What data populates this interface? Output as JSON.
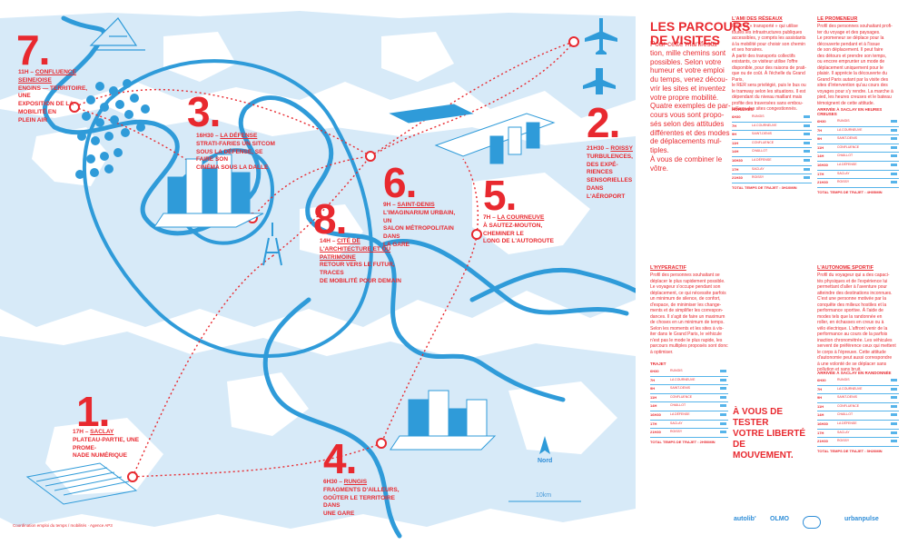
{
  "map": {
    "stops": [
      {
        "num": "7.",
        "time": "11H",
        "place": "Confluence Seine/Oise",
        "text": [
          "Engins — Territoire, une",
          "exposition de la mobilité en",
          "plein air"
        ]
      },
      {
        "num": "3.",
        "time": "16H30",
        "place": "La Défense",
        "text": [
          "Strati-Faries un sitcom",
          "sous la Défense, se faire son",
          "cinéma sous la dalle"
        ]
      },
      {
        "num": "2.",
        "time": "21H30",
        "place": "Roissy",
        "text": [
          "Turbulences, des expé-",
          "riences sensorielles dans",
          "l'aéroport"
        ]
      },
      {
        "num": "6.",
        "time": "9H",
        "place": "Saint-Denis",
        "text": [
          "L'imaginarium urbain, un",
          "salon métropolitain dans",
          "la gare"
        ]
      },
      {
        "num": "5.",
        "time": "7H",
        "place": "La Courneuve",
        "text": [
          "À Sautez-Mouton, cheminer le",
          "long de l'autoroute"
        ]
      },
      {
        "num": "8.",
        "time": "14H",
        "place": "Cité de l'architecture et du patrimoine",
        "text": [
          "Retour vers le futur, traces",
          "de mobilité pour demain"
        ]
      },
      {
        "num": "1.",
        "time": "17H",
        "place": "Saclay",
        "text": [
          "Plateau-Partie, une prome-",
          "nade numérique"
        ]
      },
      {
        "num": "4.",
        "time": "6H30",
        "place": "Rungis",
        "text": [
          "Fragments d'ailleurs,",
          "goûter le territoire dans",
          "une gare"
        ]
      }
    ],
    "scale_label": "10km",
    "north_label": "Nord",
    "credits": "Coordination emploi du temps / mobilités · Agence AP3",
    "colors": {
      "water": "#2f9bd9",
      "zone": "#d7eaf8",
      "accent": "#e8292f"
    }
  },
  "panel": {
    "title_lines": [
      "Les parcours",
      "de visites"
    ],
    "intro": [
      "Pour cette manifesta-",
      "tion, mille chemins sont",
      "possibles. Selon votre",
      "humeur et votre emploi",
      "du temps, venez décou-",
      "vrir les sites et inventez",
      "votre propre mobilité.",
      "Quatre exemples de par-",
      "cours vous sont propo-",
      "sés selon des attitudes",
      "différentes et des modes",
      "de déplacements mul-",
      "tiples.",
      "À vous de combiner le",
      "vôtre."
    ],
    "columns": [
      {
        "head": "L'AMI DES RÉSEAUX",
        "text": [
          "Profil de « transporté » qui utilise",
          "toutes les infrastructures publiques",
          "accessibles, y compris les assistants",
          "à la mobilité pour choisir son chemin",
          "et ses horaires.",
          "À partir des transports collectifs",
          "existants, ce visiteur utilise l'offre",
          "disponible, pour des raisons de prati-",
          "que ou de coût. À l'échelle du Grand Paris,",
          "le RER sera privilégié, puis le bus ou",
          "le tramway selon les situations. Il est",
          "dépendant du niveau maillant mais",
          "profite des traversées sans embou-",
          "teillage des sites congestionnés."
        ]
      },
      {
        "head": "LE PROMENEUR",
        "text": [
          "Profil des personnes souhaitant profi-",
          "ter du voyage et des paysages.",
          "Le promeneur se déplace pour la",
          "découverte pendant et à l'issue",
          "de son déplacement. Il peut faire",
          "des détours et prendre son temps,",
          "ou encore emprunter un mode de",
          "déplacement uniquement pour le",
          "plaisir. Il apprécie la découverte du",
          "Grand Paris autant par la visite des",
          "sites d'intervention qu'au cours des",
          "voyages pour s'y rendre. La marche à",
          "pied, les heures creuses et le bateau",
          "témoignent de cette attitude."
        ]
      },
      {
        "head": "L'HYPERACTIF",
        "text": [
          "Profil des personnes souhaitant se",
          "déplacer le plus rapidement possible.",
          "Le voyageur s'occupe pendant son",
          "déplacement, ce qui nécessite parfois",
          "un minimum de silence, de confort,",
          "d'espace, de minimiser les change-",
          "ments et de simplifier les correspon-",
          "dances. Il s'agit de faire un maximum",
          "de choses en un minimum de temps.",
          "Selon les moments et les sites à vis-",
          "iter dans le Grand Paris, le véhicule",
          "n'est pas le mode le plus rapide, les",
          "parcours multiples proposés sont donc",
          "à optimiser."
        ]
      },
      {
        "head": "L'AUTONOME SPORTIF",
        "text": [
          "Profil du voyageur qui a des capaci-",
          "tés physiques et de l'expérience lui",
          "permettant d'aller à l'aventure pour",
          "atteindre des destinations inconnues.",
          "C'est une personne motivée par la",
          "conquête des milieux hostiles et la",
          "performance sportive. À l'aide de",
          "modes tels que la randonnée en",
          "roller, en échasses en creux ou à",
          "vélo électrique. L'affront venir de la",
          "performance au cours de la parfois",
          "inaction chronométrée. Les véhicules",
          "servent de préférence ceux qui mettent",
          "le corps à l'épreuve. Cette attitude",
          "d'autonomie peut aussi correspondre",
          "à une volonté de se déplacer sans",
          "pollution et sans bruit."
        ]
      }
    ],
    "tables": [
      {
        "head": "HORAIRES",
        "rows": [
          [
            "6H30",
            "RUNGIS"
          ],
          [
            "7H",
            "LA COURNEUVE"
          ],
          [
            "9H",
            "SAINT-DENIS"
          ],
          [
            "11H",
            "CONFLUENCE"
          ],
          [
            "14H",
            "CHAILLOT"
          ],
          [
            "16H30",
            "LA DÉFENSE"
          ],
          [
            "17H",
            "SACLAY"
          ],
          [
            "21H30",
            "ROISSY"
          ]
        ],
        "total": "TOTAL TEMPS DE TRAJET : 3H10MIN"
      },
      {
        "head": "ARRIVÉE À SACLAY EN HEURES CREUSES",
        "rows": [
          [
            "6H30",
            "RUNGIS"
          ],
          [
            "7H",
            "LA COURNEUVE"
          ],
          [
            "9H",
            "SAINT-DENIS"
          ],
          [
            "11H",
            "CONFLUENCE"
          ],
          [
            "14H",
            "CHAILLOT"
          ],
          [
            "16H30",
            "LA DÉFENSE"
          ],
          [
            "17H",
            "SACLAY"
          ],
          [
            "21H30",
            "ROISSY"
          ]
        ],
        "total": "TOTAL TEMPS DE TRAJET : 4H05MIN"
      },
      {
        "head": "TRAJET",
        "rows": [
          [
            "6H30",
            "RUNGIS"
          ],
          [
            "7H",
            "LA COURNEUVE"
          ],
          [
            "9H",
            "SAINT-DENIS"
          ],
          [
            "11H",
            "CONFLUENCE"
          ],
          [
            "14H",
            "CHAILLOT"
          ],
          [
            "16H30",
            "LA DÉFENSE"
          ],
          [
            "17H",
            "SACLAY"
          ],
          [
            "21H30",
            "ROISSY"
          ]
        ],
        "total": "TOTAL TEMPS DE TRAJET : 2H50MIN"
      },
      {
        "head": "ARRIVÉE À SACLAY EN RANDONNÉE",
        "rows": [
          [
            "6H30",
            "RUNGIS"
          ],
          [
            "7H",
            "LA COURNEUVE"
          ],
          [
            "9H",
            "SAINT-DENIS"
          ],
          [
            "11H",
            "CONFLUENCE"
          ],
          [
            "14H",
            "CHAILLOT"
          ],
          [
            "16H30",
            "LA DÉFENSE"
          ],
          [
            "17H",
            "SACLAY"
          ],
          [
            "21H30",
            "ROISSY"
          ]
        ],
        "total": "TOTAL TEMPS DE TRAJET : 5H20MIN"
      }
    ],
    "big_text": [
      "À vous de tester",
      "votre liberté de",
      "mouvement."
    ],
    "logos": [
      "autolib'",
      "OLMO",
      "",
      "urbanpulse"
    ]
  }
}
